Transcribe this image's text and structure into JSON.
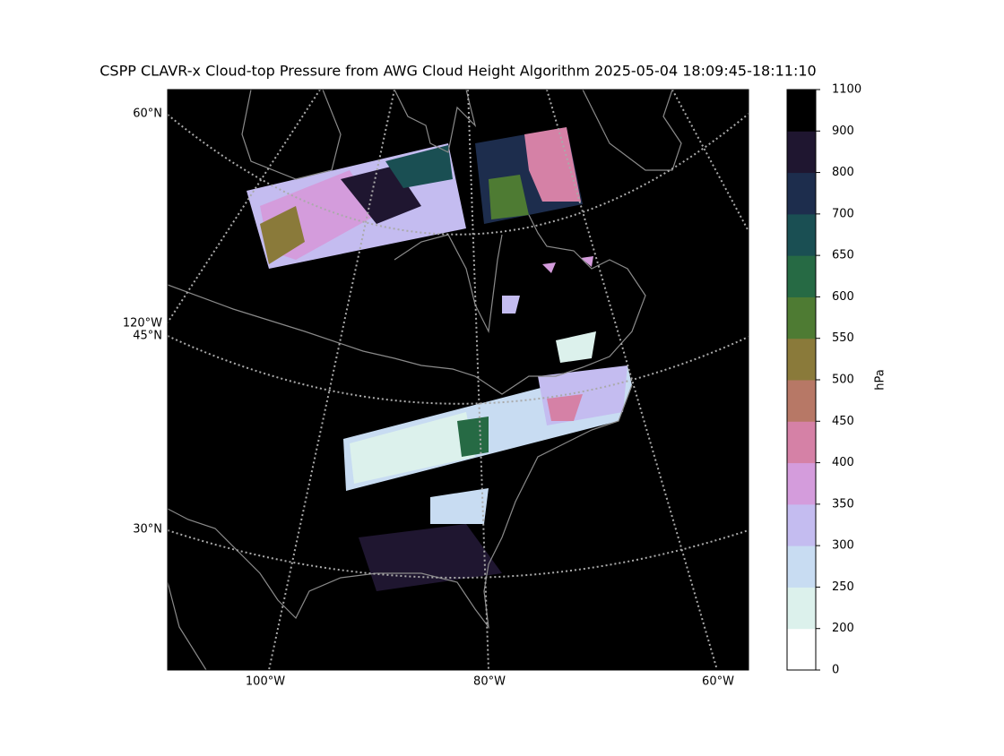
{
  "title": "CSPP CLAVR-x Cloud-top Pressure from AWG Cloud Height Algorithm 2025-05-04 18:09:45-18:11:10",
  "map": {
    "lat_labels": [
      "60°N",
      "45°N",
      "30°N"
    ],
    "lon_label_left": "120°W",
    "lon_labels_bottom": [
      "100°W",
      "80°W",
      "60°W"
    ]
  },
  "colorbar": {
    "label": "hPa",
    "ticks": [
      0,
      200,
      250,
      300,
      350,
      400,
      450,
      500,
      550,
      600,
      650,
      700,
      800,
      900,
      1100
    ],
    "colors": [
      "#ffffff",
      "#dcf1ec",
      "#c8dcf2",
      "#c4bcf0",
      "#d49cdc",
      "#d581a6",
      "#b77866",
      "#8a7a3a",
      "#4e7b33",
      "#266a44",
      "#1a4f53",
      "#1d2d4d",
      "#1f1630",
      "#000000"
    ]
  }
}
